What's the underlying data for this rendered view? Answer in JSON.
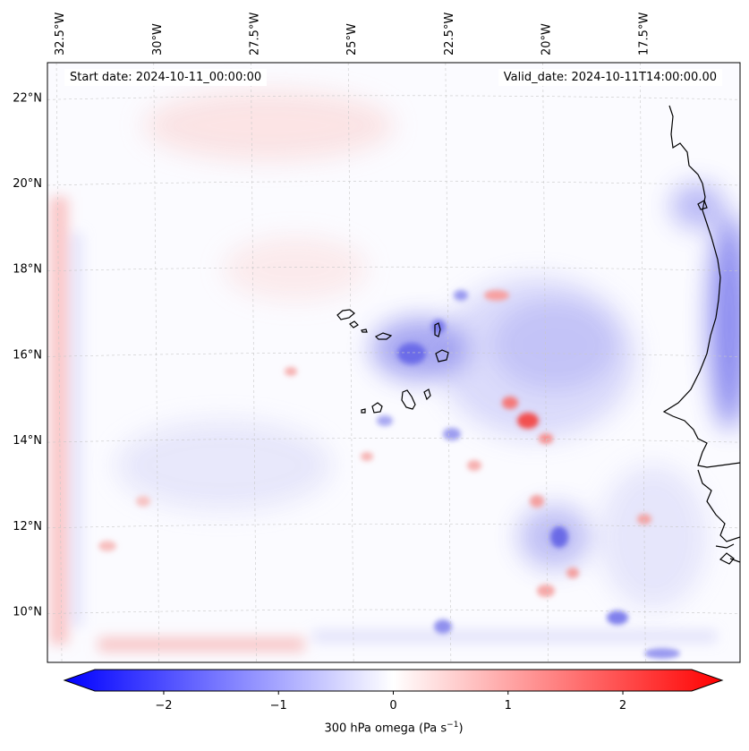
{
  "map": {
    "variable": "300 hPa omega",
    "units_label": "(Pa s",
    "units_exponent": "−1",
    "units_close": ")",
    "start_date_label": "Start date: 2024-10-11_00:00:00",
    "valid_date_label": "Valid_date: 2024-10-11T14:00:00.00",
    "extent": {
      "lon_min": -32.8,
      "lon_max": -15.0,
      "lat_min": 8.8,
      "lat_max": 22.8
    },
    "lon_ticks": [
      {
        "value": -32.5,
        "label": "32.5°W"
      },
      {
        "value": -30.0,
        "label": "30°W"
      },
      {
        "value": -27.5,
        "label": "27.5°W"
      },
      {
        "value": -25.0,
        "label": "25°W"
      },
      {
        "value": -22.5,
        "label": "22.5°W"
      },
      {
        "value": -20.0,
        "label": "20°W"
      },
      {
        "value": -17.5,
        "label": "17.5°W"
      }
    ],
    "lat_ticks": [
      {
        "value": 10,
        "label": "10°N"
      },
      {
        "value": 12,
        "label": "12°N"
      },
      {
        "value": 14,
        "label": "14°N"
      },
      {
        "value": 16,
        "label": "16°N"
      },
      {
        "value": 18,
        "label": "18°N"
      },
      {
        "value": 20,
        "label": "20°N"
      },
      {
        "value": 22,
        "label": "22°N"
      }
    ],
    "colorbar": {
      "min": -2.6,
      "max": 2.6,
      "colormap": "bwr",
      "neg_color": "#0000ff",
      "mid_color": "#ffffff",
      "pos_color": "#ff0000",
      "ticks": [
        {
          "value": -2,
          "label": "−2"
        },
        {
          "value": -1,
          "label": "−1"
        },
        {
          "value": 0,
          "label": "0"
        },
        {
          "value": 1,
          "label": "1"
        },
        {
          "value": 2,
          "label": "2"
        }
      ]
    },
    "features": [
      {
        "name": "cyclone-subsidence-core",
        "lon": -19.8,
        "lat": 15.9,
        "omega": -1.1
      },
      {
        "name": "cape-verde-upward-area",
        "lon": -24.0,
        "lat": 15.8,
        "omega": -0.9
      },
      {
        "name": "coastal-upward-band",
        "lon": -15.1,
        "lat": 17.0,
        "omega": -1.3
      },
      {
        "name": "convective-hotspot",
        "lon": -19.9,
        "lat": 14.4,
        "omega": 1.3
      },
      {
        "name": "southern-boundary-positive-band",
        "lon": -28.0,
        "lat": 9.2,
        "omega": 0.6
      },
      {
        "name": "western-boundary-positive-band",
        "lon": -32.5,
        "lat": 14.0,
        "omega": 0.5
      }
    ]
  }
}
